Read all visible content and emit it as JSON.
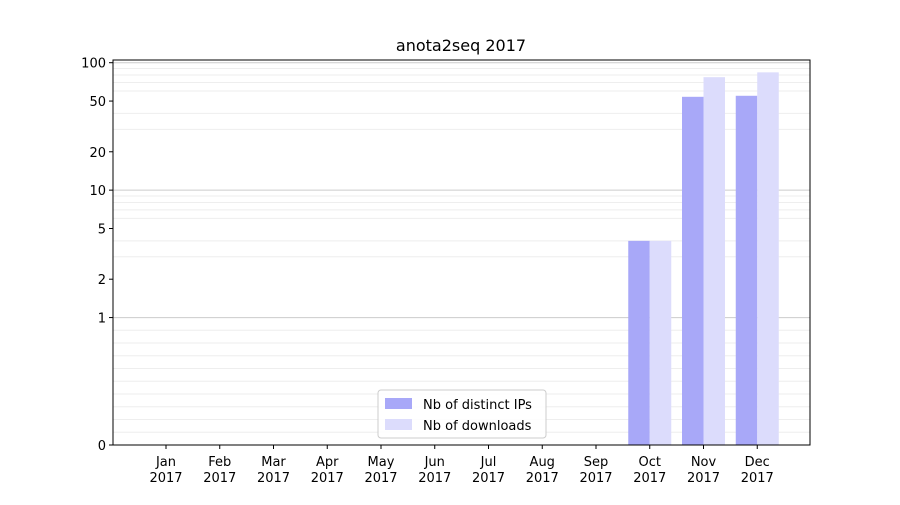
{
  "chart_data": {
    "type": "bar",
    "title": "anota2seq 2017",
    "xlabel": "",
    "ylabel": "",
    "y_scale": "symlog",
    "y_ticks": [
      0,
      1,
      2,
      5,
      10,
      20,
      50,
      100
    ],
    "y_tick_labels": [
      "0",
      "1",
      "2",
      "5",
      "10",
      "20",
      "50",
      "100"
    ],
    "ylim": [
      0,
      105
    ],
    "categories": [
      {
        "month": "Jan",
        "year": "2017"
      },
      {
        "month": "Feb",
        "year": "2017"
      },
      {
        "month": "Mar",
        "year": "2017"
      },
      {
        "month": "Apr",
        "year": "2017"
      },
      {
        "month": "May",
        "year": "2017"
      },
      {
        "month": "Jun",
        "year": "2017"
      },
      {
        "month": "Jul",
        "year": "2017"
      },
      {
        "month": "Aug",
        "year": "2017"
      },
      {
        "month": "Sep",
        "year": "2017"
      },
      {
        "month": "Oct",
        "year": "2017"
      },
      {
        "month": "Nov",
        "year": "2017"
      },
      {
        "month": "Dec",
        "year": "2017"
      }
    ],
    "series": [
      {
        "name": "Nb of distinct IPs",
        "color": "#a8a8f8",
        "values": [
          0,
          0,
          0,
          0,
          0,
          0,
          0,
          0,
          0,
          4,
          54,
          55
        ]
      },
      {
        "name": "Nb of downloads",
        "color": "#dcdcfc",
        "values": [
          0,
          0,
          0,
          0,
          0,
          0,
          0,
          0,
          0,
          4,
          77,
          84
        ]
      }
    ],
    "grid": true,
    "legend_position": "bottom-center"
  }
}
